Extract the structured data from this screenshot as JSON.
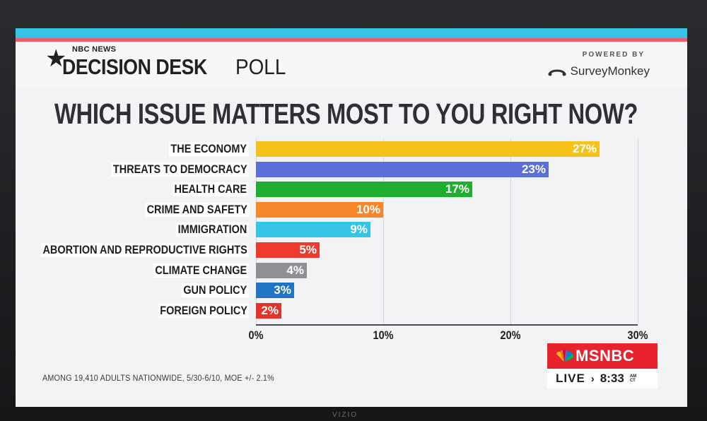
{
  "header": {
    "network": "NBC NEWS",
    "desk_title": "DECISION DESK",
    "poll_label": "POLL",
    "powered_by": "POWERED BY",
    "sponsor": "SurveyMonkey"
  },
  "question": "WHICH ISSUE MATTERS MOST TO YOU RIGHT NOW?",
  "chart_data": {
    "type": "bar",
    "orientation": "horizontal",
    "categories": [
      "THE ECONOMY",
      "THREATS TO DEMOCRACY",
      "HEALTH CARE",
      "CRIME AND SAFETY",
      "IMMIGRATION",
      "ABORTION AND REPRODUCTIVE RIGHTS",
      "CLIMATE CHANGE",
      "GUN POLICY",
      "FOREIGN POLICY"
    ],
    "values": [
      27,
      23,
      17,
      10,
      9,
      5,
      4,
      3,
      2
    ],
    "value_labels": [
      "27%",
      "23%",
      "17%",
      "10%",
      "9%",
      "5%",
      "4%",
      "3%",
      "2%"
    ],
    "colors": [
      "#f4c21a",
      "#5c6ed8",
      "#1fae2f",
      "#f6862a",
      "#35c3e6",
      "#ee3a2c",
      "#8f9094",
      "#1f74c4",
      "#e3332b"
    ],
    "xlim": [
      0,
      30
    ],
    "ticks": [
      0,
      10,
      20,
      30
    ],
    "tick_labels": [
      "0%",
      "10%",
      "20%",
      "30%"
    ],
    "grid": true
  },
  "footnote": "AMONG 19,410 ADULTS NATIONWIDE, 5/30-6/10, MOE +/- 2.1%",
  "network_bug": {
    "name": "MSNBC",
    "live_label": "LIVE",
    "time": "8:33",
    "ampm": "AM",
    "timezone": "CT"
  },
  "tv_brand": "VIZIO"
}
